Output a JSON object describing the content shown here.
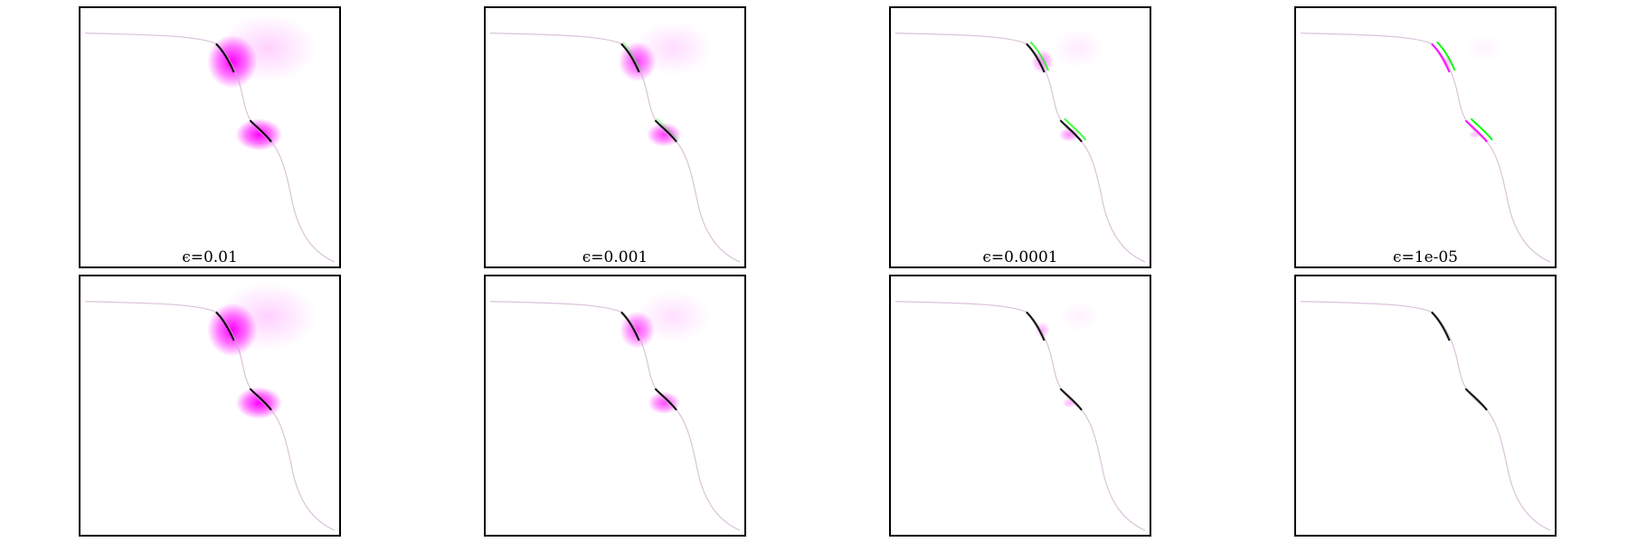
{
  "chart_data": [
    {
      "type": "heatmap",
      "row": "top",
      "label": "ϵ=0.01",
      "blob_strength": 1.0,
      "green_strength": 0.0,
      "spread": 1.0
    },
    {
      "type": "heatmap",
      "row": "top",
      "label": "ϵ=0.001",
      "blob_strength": 0.75,
      "green_strength": 0.3,
      "spread": 0.75
    },
    {
      "type": "heatmap",
      "row": "top",
      "label": "ϵ=0.0001",
      "blob_strength": 0.45,
      "green_strength": 0.75,
      "spread": 0.45
    },
    {
      "type": "heatmap",
      "row": "top",
      "label": "ϵ=1e-05",
      "blob_strength": 0.25,
      "green_strength": 1.0,
      "spread": 0.25
    },
    {
      "type": "heatmap",
      "row": "bottom",
      "label": "",
      "blob_strength": 1.0,
      "green_strength": 0.0,
      "spread": 1.0
    },
    {
      "type": "heatmap",
      "row": "bottom",
      "label": "",
      "blob_strength": 0.7,
      "green_strength": 0.0,
      "spread": 0.7
    },
    {
      "type": "heatmap",
      "row": "bottom",
      "label": "",
      "blob_strength": 0.3,
      "green_strength": 0.0,
      "spread": 0.3
    },
    {
      "type": "heatmap",
      "row": "bottom",
      "label": "",
      "blob_strength": 0.0,
      "green_strength": 0.0,
      "spread": 0.1
    }
  ],
  "colors": {
    "magenta": "#ff00ff",
    "green": "#00ff00",
    "curve": "#000000",
    "background": "#ffffff"
  }
}
